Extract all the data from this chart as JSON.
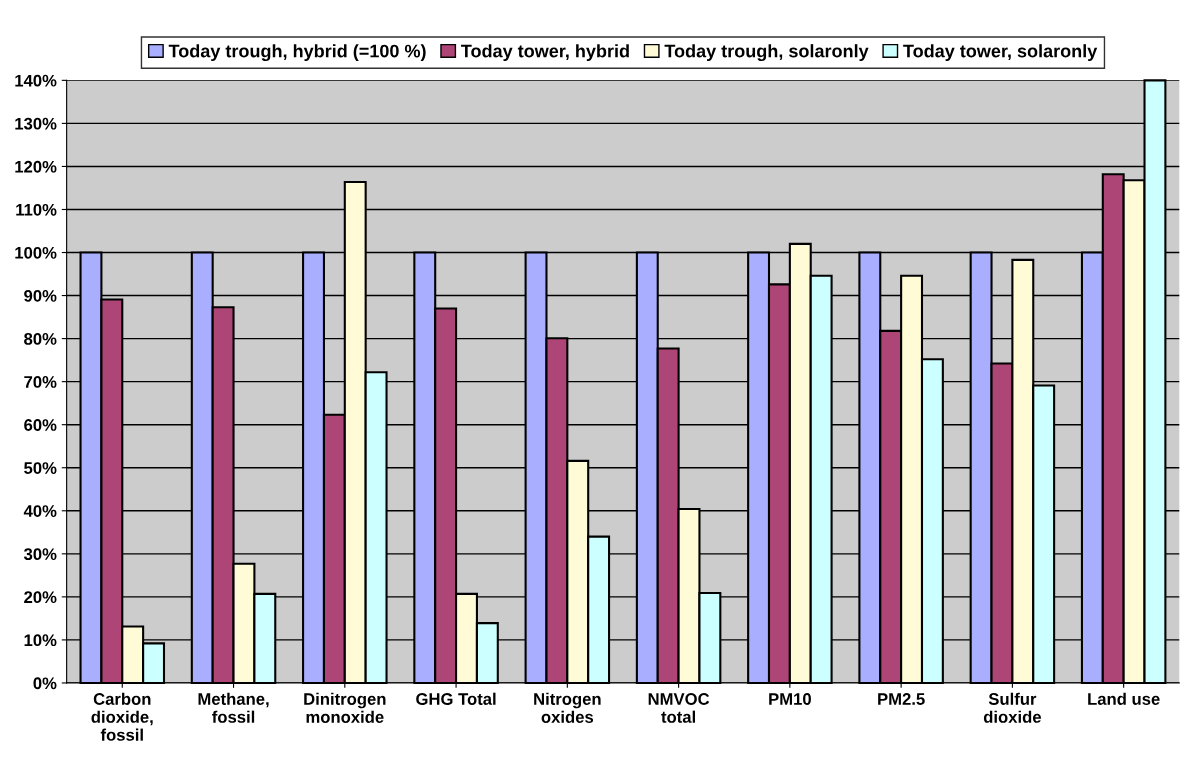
{
  "chart_data": {
    "type": "bar",
    "categories": [
      "Carbon\ndioxide,\nfossil",
      "Methane,\nfossil",
      "Dinitrogen\nmonoxide",
      "GHG Total",
      "Nitrogen\noxides",
      "NMVOC\ntotal",
      "PM10",
      "PM2.5",
      "Sulfur\ndioxide",
      "Land use"
    ],
    "series": [
      {
        "name": "Today trough, hybrid (=100 %)",
        "color": "#a9aeff",
        "values": [
          100,
          100,
          100,
          100,
          100,
          100,
          100,
          100,
          100,
          100
        ]
      },
      {
        "name": "Today tower, hybrid",
        "color": "#ae4577",
        "values": [
          89.1,
          87.3,
          62.3,
          87.0,
          80.1,
          77.7,
          92.6,
          81.8,
          74.2,
          118.2
        ]
      },
      {
        "name": "Today trough, solaronly",
        "color": "#fffbd7",
        "values": [
          13.1,
          27.7,
          116.4,
          20.7,
          51.6,
          40.4,
          102.0,
          94.6,
          98.3,
          116.8
        ]
      },
      {
        "name": "Today tower, solaronly",
        "color": "#ccffff",
        "values": [
          9.2,
          20.7,
          72.2,
          13.9,
          34.0,
          20.9,
          94.6,
          75.2,
          69.1,
          140
        ]
      }
    ],
    "ylim": [
      0,
      140
    ],
    "yticks": [
      {
        "value": 0,
        "label": "0%"
      },
      {
        "value": 10,
        "label": "10%"
      },
      {
        "value": 20,
        "label": "20%"
      },
      {
        "value": 30,
        "label": "30%"
      },
      {
        "value": 40,
        "label": "40%"
      },
      {
        "value": 50,
        "label": "50%"
      },
      {
        "value": 60,
        "label": "60%"
      },
      {
        "value": 70,
        "label": "70%"
      },
      {
        "value": 80,
        "label": "80%"
      },
      {
        "value": 90,
        "label": "90%"
      },
      {
        "value": 100,
        "label": "100%"
      },
      {
        "value": 110,
        "label": "110%"
      },
      {
        "value": 120,
        "label": "120%"
      },
      {
        "value": 130,
        "label": "130%"
      },
      {
        "value": 140,
        "label": "140%"
      }
    ],
    "grid": "y",
    "legend": "top"
  }
}
